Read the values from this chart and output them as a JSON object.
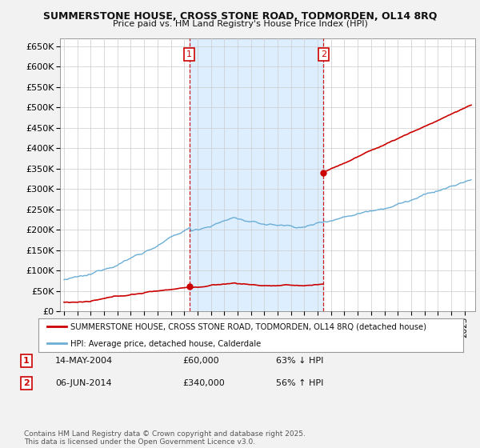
{
  "title": "SUMMERSTONE HOUSE, CROSS STONE ROAD, TODMORDEN, OL14 8RQ",
  "subtitle": "Price paid vs. HM Land Registry's House Price Index (HPI)",
  "background_color": "#ffffff",
  "fig_background_color": "#f2f2f2",
  "grid_color": "#cccccc",
  "shade_color": "#ddeeff",
  "purchase1_year": 2004.38,
  "purchase1_price": 60000,
  "purchase2_year": 2014.44,
  "purchase2_price": 340000,
  "legend_line1": "SUMMERSTONE HOUSE, CROSS STONE ROAD, TODMORDEN, OL14 8RQ (detached house)",
  "legend_line2": "HPI: Average price, detached house, Calderdale",
  "annotation1": [
    "1",
    "14-MAY-2004",
    "£60,000",
    "63% ↓ HPI"
  ],
  "annotation2": [
    "2",
    "06-JUN-2014",
    "£340,000",
    "56% ↑ HPI"
  ],
  "footer": "Contains HM Land Registry data © Crown copyright and database right 2025.\nThis data is licensed under the Open Government Licence v3.0.",
  "hpi_color": "#6baed6",
  "price_color": "#cc0000",
  "dashed_color": "#cc0000",
  "ylim": [
    0,
    670000
  ],
  "yticks": [
    0,
    50000,
    100000,
    150000,
    200000,
    250000,
    300000,
    350000,
    400000,
    450000,
    500000,
    550000,
    600000,
    650000
  ],
  "xstart": 1995,
  "xend": 2025
}
